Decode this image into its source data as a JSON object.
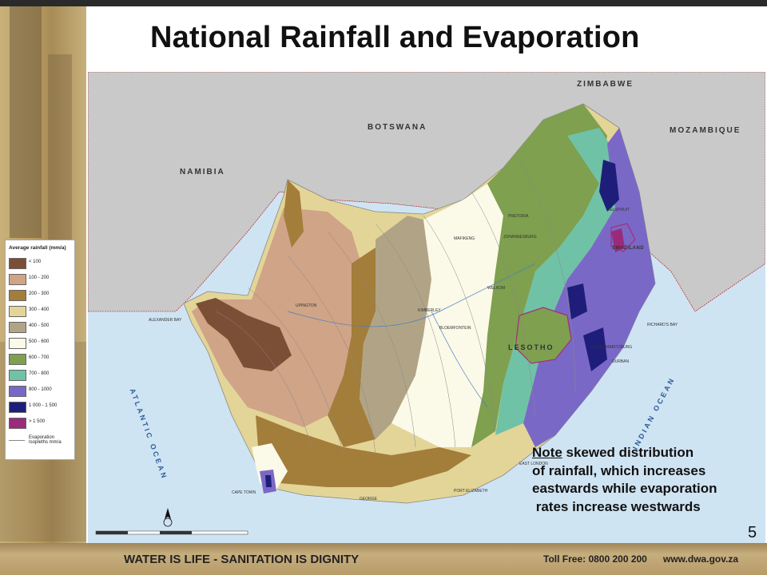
{
  "title": "National Rainfall and Evaporation",
  "map": {
    "countries": [
      {
        "id": "zimbabwe",
        "label": "ZIMBABWE"
      },
      {
        "id": "botswana",
        "label": "BOTSWANA"
      },
      {
        "id": "namibia",
        "label": "NAMIBIA"
      },
      {
        "id": "mozambique",
        "label": "MOZAMBIQUE"
      },
      {
        "id": "lesotho",
        "label": "LESOTHO"
      },
      {
        "id": "swaziland",
        "label": "SWAZILAND"
      }
    ],
    "oceans": [
      {
        "id": "atlantic",
        "label": "ATLANTIC OCEAN"
      },
      {
        "id": "indian",
        "label": "INDIAN OCEAN"
      }
    ],
    "towns": [
      "MAFIKENG",
      "PRETORIA",
      "JOHANNESBURG",
      "NELSPRUIT",
      "UPINGTON",
      "KIMBERLEY",
      "WELKOM",
      "BLOEMFONTEIN",
      "ALEXANDER BAY",
      "RICHARD'S BAY",
      "PIETERMARITZBURG",
      "DURBAN",
      "EAST LONDON",
      "CAPE TOWN",
      "GEORGE",
      "PORT ELIZABETH"
    ],
    "scale_labels": [
      "100",
      "50",
      "0",
      "100",
      "200",
      "300",
      "400 km"
    ]
  },
  "legend": {
    "title": "Average rainfall (mm/a)",
    "items": [
      {
        "label": "< 100",
        "color": "#7a4f36"
      },
      {
        "label": "100 - 200",
        "color": "#cfa487"
      },
      {
        "label": "200 - 300",
        "color": "#a37d3a"
      },
      {
        "label": "300 - 400",
        "color": "#e3d597"
      },
      {
        "label": "400 - 500",
        "color": "#b1a486"
      },
      {
        "label": "500 - 600",
        "color": "#fbf9e8"
      },
      {
        "label": "600 - 700",
        "color": "#7ea04f"
      },
      {
        "label": "700 - 800",
        "color": "#6fc2a6"
      },
      {
        "label": "800 - 1000",
        "color": "#7a68c6"
      },
      {
        "label": "1 000 - 1 500",
        "color": "#1e1e7a"
      },
      {
        "label": "> 1 500",
        "color": "#9a2a7a"
      }
    ],
    "isopleth_label": "Evaporation Isopleths mm/a"
  },
  "note": {
    "underlined": "Note",
    "line1_rest": " skewed distribution",
    "line2": "of rainfall, which increases",
    "line3": "eastwards while evaporation",
    "line4": " rates increase westwards"
  },
  "page_number": "5",
  "footer": {
    "slogan": "WATER IS LIFE - SANITATION IS DIGNITY",
    "toll_free": "Toll Free: 0800 200 200",
    "website": "www.dwa.gov.za"
  }
}
